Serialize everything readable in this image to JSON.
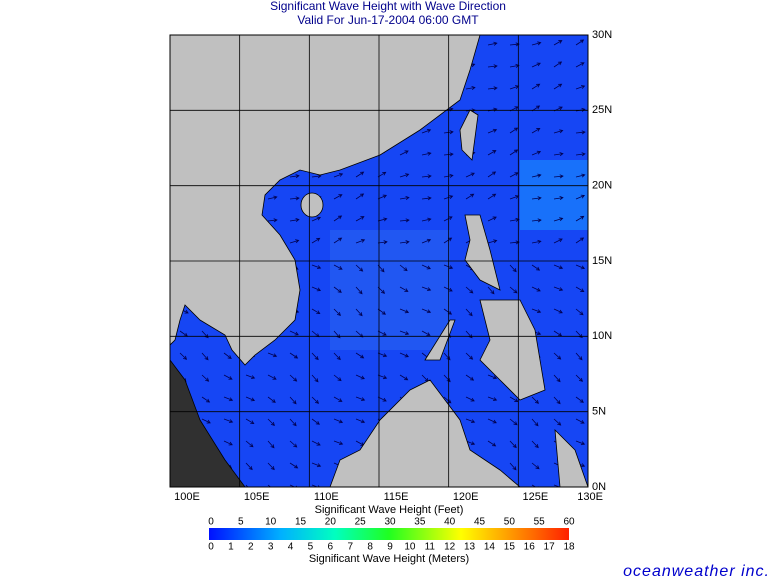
{
  "header": {
    "title": "Significant Wave Height with Wave Direction",
    "subtitle": "Valid For Jun-17-2004 06:00 GMT"
  },
  "map": {
    "lon_labels": [
      "100E",
      "105E",
      "110E",
      "115E",
      "120E",
      "125E",
      "130E"
    ],
    "lat_labels": [
      "0N",
      "5N",
      "10N",
      "15N",
      "20N",
      "25N",
      "30N"
    ]
  },
  "legend": {
    "feet_title": "Significant Wave Height (Feet)",
    "feet_ticks": [
      0,
      5,
      10,
      15,
      20,
      25,
      30,
      35,
      40,
      45,
      50,
      55,
      60
    ],
    "meters_title": "Significant Wave Height (Meters)",
    "meters_ticks": [
      0,
      1,
      2,
      3,
      4,
      5,
      6,
      7,
      8,
      9,
      10,
      11,
      12,
      13,
      14,
      15,
      16,
      17,
      18
    ]
  },
  "footer": {
    "brand": "oceanweather inc."
  }
}
